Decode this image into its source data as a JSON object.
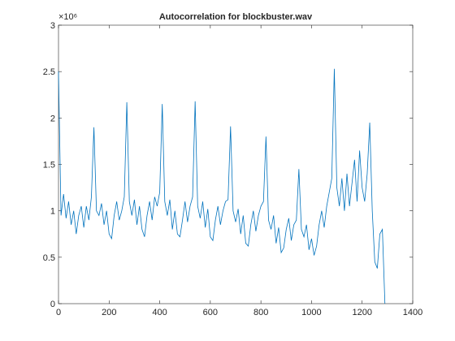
{
  "chart_data": {
    "type": "line",
    "title": "Autocorrelation for blockbuster.wav",
    "y_exponent_label": "×10⁶",
    "x": [
      0,
      10,
      20,
      30,
      40,
      50,
      60,
      70,
      80,
      90,
      100,
      110,
      120,
      130,
      140,
      150,
      160,
      170,
      180,
      190,
      200,
      210,
      220,
      230,
      240,
      250,
      260,
      270,
      280,
      290,
      300,
      310,
      320,
      330,
      340,
      350,
      360,
      370,
      380,
      390,
      400,
      410,
      420,
      430,
      440,
      450,
      460,
      470,
      480,
      490,
      500,
      510,
      520,
      530,
      540,
      550,
      560,
      570,
      580,
      590,
      600,
      610,
      620,
      630,
      640,
      650,
      660,
      670,
      680,
      690,
      700,
      710,
      720,
      730,
      740,
      750,
      760,
      770,
      780,
      790,
      800,
      810,
      820,
      830,
      840,
      850,
      860,
      870,
      880,
      890,
      900,
      910,
      920,
      930,
      940,
      950,
      960,
      970,
      980,
      990,
      1000,
      1010,
      1020,
      1030,
      1040,
      1050,
      1060,
      1070,
      1080,
      1090,
      1100,
      1110,
      1120,
      1130,
      1140,
      1150,
      1160,
      1170,
      1180,
      1190,
      1200,
      1210,
      1220,
      1230,
      1240,
      1250,
      1260,
      1270,
      1280,
      1290
    ],
    "series": [
      {
        "name": "autocorrelation",
        "color": "#0072bd",
        "values": [
          2.5,
          0.95,
          1.18,
          0.92,
          1.1,
          0.85,
          1.0,
          0.75,
          0.95,
          1.05,
          0.82,
          1.05,
          0.9,
          1.15,
          1.9,
          1.0,
          0.95,
          1.08,
          0.85,
          1.0,
          0.75,
          0.7,
          0.95,
          1.1,
          0.9,
          1.0,
          1.15,
          2.17,
          1.1,
          0.95,
          1.12,
          0.85,
          1.05,
          0.8,
          0.72,
          0.95,
          1.1,
          0.9,
          1.15,
          1.05,
          1.2,
          2.15,
          1.1,
          0.95,
          1.12,
          0.8,
          1.0,
          0.75,
          0.72,
          0.9,
          1.1,
          0.88,
          1.05,
          1.15,
          2.18,
          1.05,
          0.92,
          1.1,
          0.82,
          1.02,
          0.72,
          0.68,
          0.9,
          1.05,
          0.85,
          1.0,
          1.1,
          1.12,
          1.91,
          1.0,
          0.88,
          1.02,
          0.75,
          0.95,
          0.65,
          0.62,
          0.85,
          1.0,
          0.78,
          0.95,
          1.05,
          1.1,
          1.8,
          0.9,
          0.8,
          0.95,
          0.65,
          0.82,
          0.55,
          0.6,
          0.8,
          0.92,
          0.68,
          0.85,
          0.9,
          1.45,
          0.8,
          0.72,
          0.85,
          0.58,
          0.7,
          0.52,
          0.62,
          0.85,
          1.0,
          0.82,
          1.05,
          1.2,
          1.35,
          2.53,
          1.25,
          1.05,
          1.35,
          1.0,
          1.4,
          1.05,
          1.3,
          1.55,
          1.1,
          1.65,
          1.25,
          1.1,
          1.4,
          1.95,
          1.0,
          0.45,
          0.38,
          0.75,
          0.8,
          0.0
        ]
      }
    ],
    "xlim": [
      0,
      1400
    ],
    "xticks": [
      0,
      200,
      400,
      600,
      800,
      1000,
      1200,
      1400
    ],
    "ylim": [
      0,
      3
    ],
    "yticks": [
      0,
      0.5,
      1,
      1.5,
      2,
      2.5,
      3
    ]
  }
}
